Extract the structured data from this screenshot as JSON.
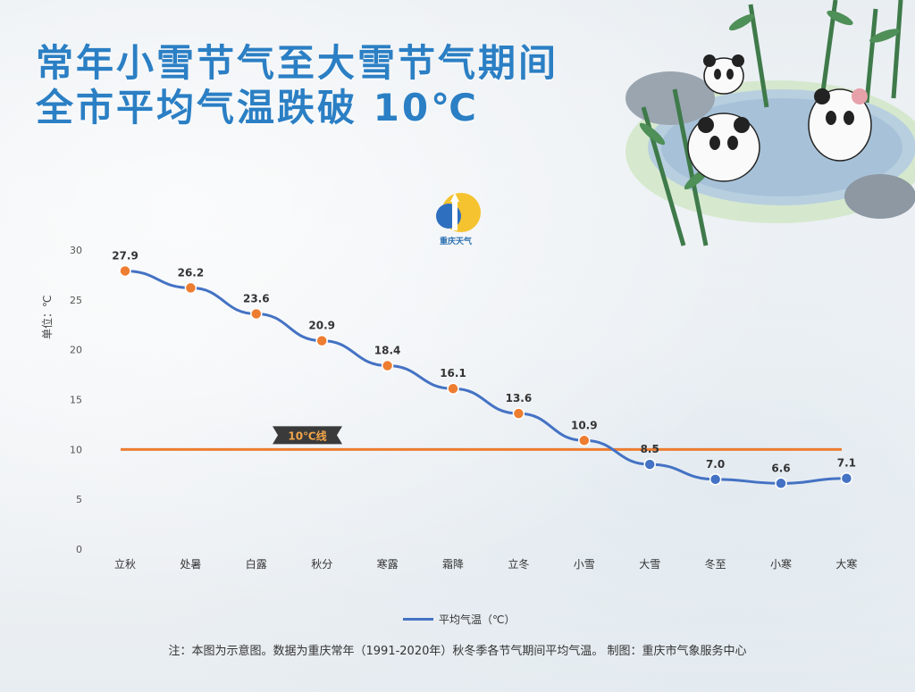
{
  "title_line1": "常年小雪节气至大雪节气期间",
  "title_line2": "全市平均气温跌破 10℃",
  "logo_text": "重庆天气",
  "ylabel": "单位：℃",
  "threshold_label": "10℃线",
  "legend_label": "平均气温（℃）",
  "note": "注：本图为示意图。数据为重庆常年（1991-2020年）秋冬季各节气期间平均气温。   制图：重庆市气象服务中心",
  "colors": {
    "title": "#2b7fc4",
    "line": "#4472c4",
    "marker_above": "#ed7d31",
    "marker_below": "#4472c4",
    "threshold": "#ed7d31"
  },
  "chart_data": {
    "type": "line",
    "categories": [
      "立秋",
      "处暑",
      "白露",
      "秋分",
      "寒露",
      "霜降",
      "立冬",
      "小雪",
      "大雪",
      "冬至",
      "小寒",
      "大寒"
    ],
    "series": [
      {
        "name": "平均气温（℃）",
        "values": [
          27.9,
          26.2,
          23.6,
          20.9,
          18.4,
          16.1,
          13.6,
          10.9,
          8.5,
          7.0,
          6.6,
          7.1
        ]
      }
    ],
    "data_labels": [
      "27.9",
      "26.2",
      "23.6",
      "20.9",
      "18.4",
      "16.1",
      "13.6",
      "10.9",
      "8.5",
      "7.0",
      "6.6",
      "7.1"
    ],
    "threshold": 10,
    "ylim": [
      0,
      30
    ],
    "yticks": [
      0,
      5,
      10,
      15,
      20,
      25,
      30
    ],
    "ylabel": "单位：℃",
    "grid": false,
    "legend": "bottom"
  }
}
